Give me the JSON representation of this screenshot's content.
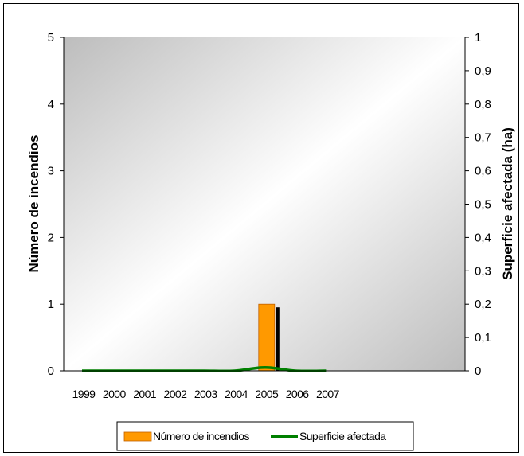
{
  "chart_data": {
    "type": "bar",
    "categories": [
      "1999",
      "2000",
      "2001",
      "2002",
      "2003",
      "2004",
      "2005",
      "2006",
      "2007"
    ],
    "series": [
      {
        "name": "Número de incendios",
        "type": "bar",
        "axis": "left",
        "color": "#ff9900",
        "values": [
          0,
          0,
          0,
          0,
          0,
          0,
          1,
          0,
          0
        ]
      },
      {
        "name": "Superficie afectada",
        "type": "line",
        "axis": "right",
        "color": "#008000",
        "values": [
          0,
          0,
          0,
          0,
          0,
          0,
          0.01,
          0,
          0
        ]
      }
    ],
    "ylabel": "Número de incendios",
    "y2label": "Superficie afectada (ha)",
    "ylim": [
      0,
      5
    ],
    "y2lim": [
      0,
      1
    ],
    "yticks": [
      "0",
      "1",
      "2",
      "3",
      "4",
      "5"
    ],
    "y2ticks": [
      "0",
      "0,1",
      "0,2",
      "0,3",
      "0,4",
      "0,5",
      "0,6",
      "0,7",
      "0,8",
      "0,9",
      "1"
    ],
    "legend": "bottom"
  }
}
